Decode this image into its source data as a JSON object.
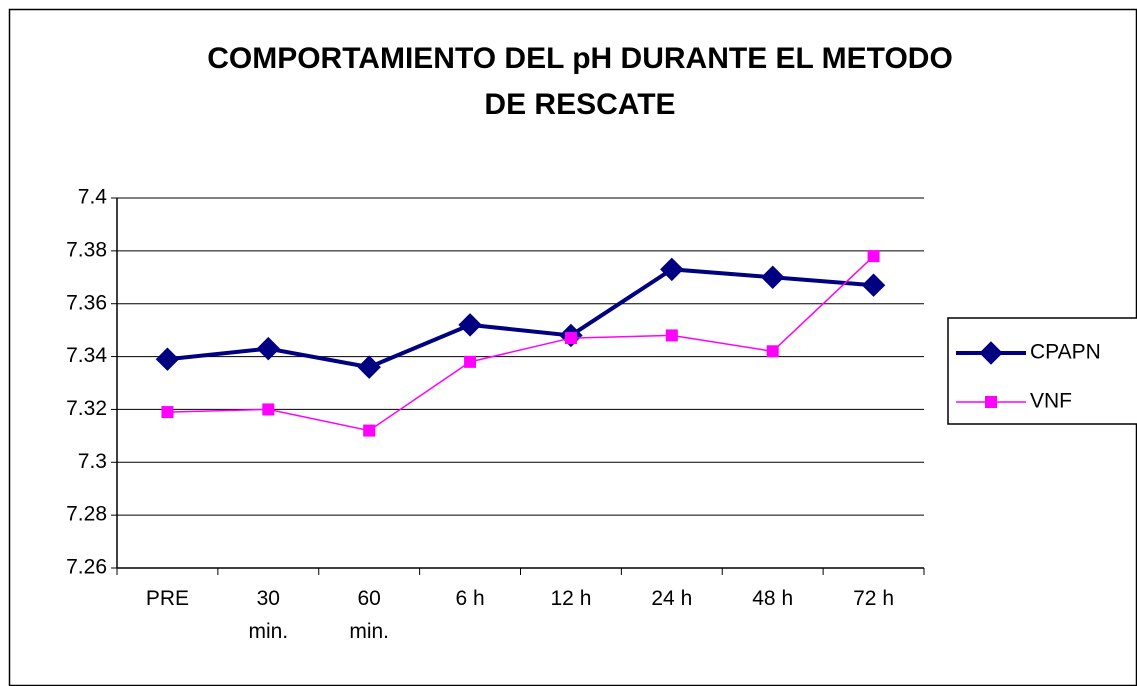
{
  "chart_data": {
    "type": "line",
    "title": "COMPORTAMIENTO DEL pH DURANTE EL METODO DE RESCATE",
    "categories": [
      "PRE",
      "30 min.",
      "60 min.",
      "6 h",
      "12 h",
      "24 h",
      "48 h",
      "72 h"
    ],
    "series": [
      {
        "name": "CPAPN",
        "color": "#000080",
        "values": [
          7.339,
          7.343,
          7.336,
          7.352,
          7.348,
          7.373,
          7.37,
          7.367
        ]
      },
      {
        "name": "VNF",
        "color": "#ff00ff",
        "values": [
          7.319,
          7.32,
          7.312,
          7.338,
          7.347,
          7.348,
          7.342,
          7.378
        ]
      }
    ],
    "ylim": [
      7.26,
      7.4
    ],
    "yticks": [
      7.26,
      7.28,
      7.3,
      7.32,
      7.34,
      7.36,
      7.38,
      7.4
    ],
    "grid": true,
    "legend": "right"
  }
}
